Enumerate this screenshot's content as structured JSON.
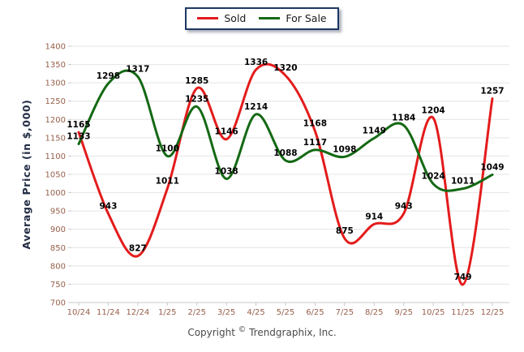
{
  "legend": {
    "items": [
      {
        "label": "Sold",
        "color": "#e41b1b"
      },
      {
        "label": "For Sale",
        "color": "#146914"
      }
    ]
  },
  "footer": {
    "copyright_pre": "Copyright ",
    "copyright_symbol": "©",
    "copyright_post": " Trendgraphix, Inc."
  },
  "chart_data": {
    "type": "line",
    "title": "",
    "xlabel": "",
    "ylabel": "Average Price (in $,000)",
    "categories": [
      "10/24",
      "11/24",
      "12/24",
      "1/25",
      "2/25",
      "3/25",
      "4/25",
      "5/25",
      "6/25",
      "7/25",
      "8/25",
      "9/25",
      "10/25",
      "11/25",
      "12/25"
    ],
    "series": [
      {
        "name": "Sold",
        "color": "#e41b1b",
        "values": [
          1165,
          943,
          827,
          1011,
          1285,
          1146,
          1336,
          1320,
          1168,
          875,
          914,
          943,
          1204,
          749,
          1257
        ]
      },
      {
        "name": "For Sale",
        "color": "#146914",
        "values": [
          1133,
          1298,
          1317,
          1100,
          1235,
          1038,
          1214,
          1088,
          1117,
          1098,
          1149,
          1184,
          1024,
          1011,
          1049
        ]
      }
    ],
    "ylim": [
      700,
      1400
    ],
    "y_ticks": [
      1400,
      1350,
      1300,
      1250,
      1200,
      1150,
      1100,
      1050,
      1000,
      950,
      900,
      850,
      800,
      750,
      700
    ],
    "grid": true,
    "smooth": true,
    "data_labels": true,
    "legend_position": "top-center"
  },
  "style": {
    "tick_label_color": "#965f4b",
    "axis_title_color": "#232d46",
    "data_label_color": "#000000",
    "grid_color": "#e4e4e4",
    "axis_color": "#c8c8c8",
    "legend_border_color": "#1e3764",
    "copyright_color": "#4a4a4a"
  }
}
